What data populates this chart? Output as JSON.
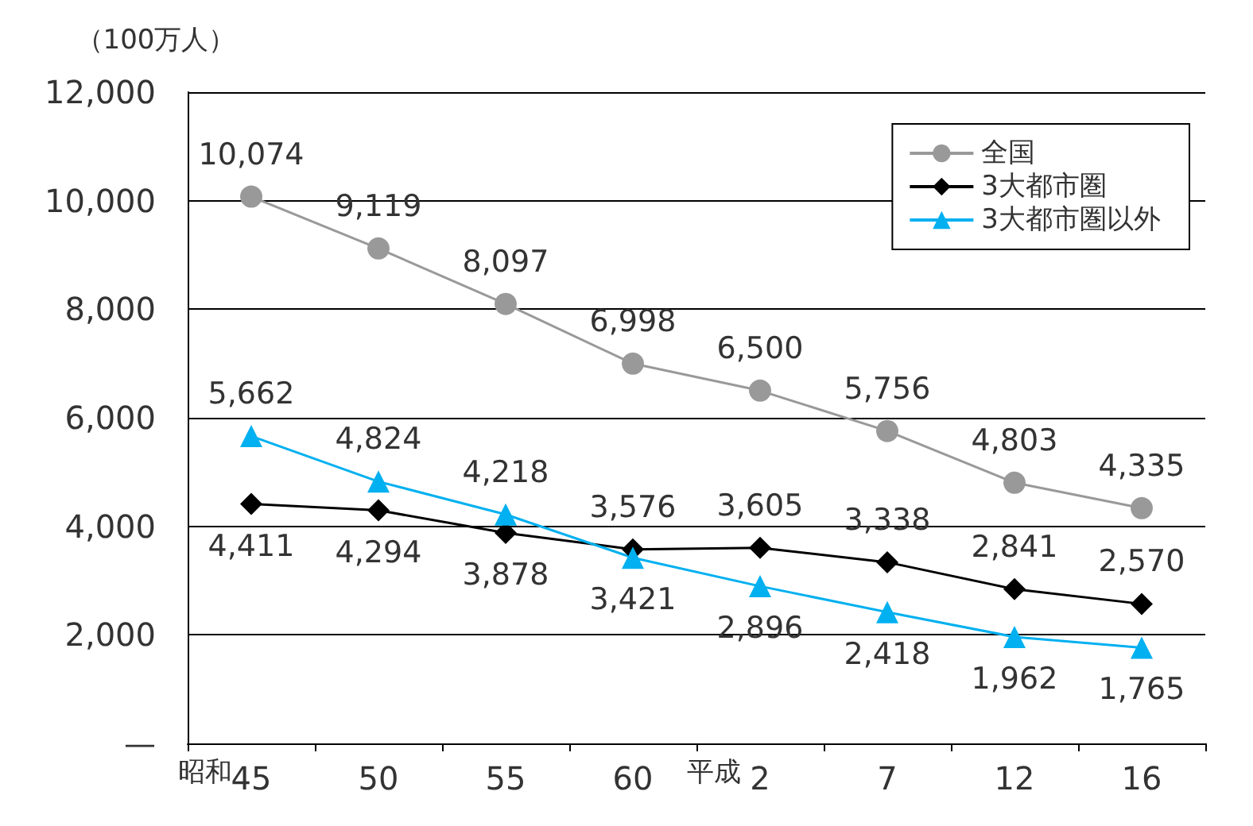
{
  "chart_data": {
    "type": "line",
    "ylabel": "（100万人）",
    "categories": [
      "45",
      "50",
      "55",
      "60",
      "2",
      "7",
      "12",
      "16"
    ],
    "series": [
      {
        "name": "全国",
        "color": "#999999",
        "marker": "circle",
        "values": [
          10074,
          9119,
          8097,
          6998,
          6500,
          5756,
          4803,
          4335
        ],
        "value_labels": [
          "10,074",
          "9,119",
          "8,097",
          "6,998",
          "6,500",
          "5,756",
          "4,803",
          "4,335"
        ]
      },
      {
        "name": "3大都市圏",
        "color": "#000000",
        "marker": "diamond",
        "values": [
          4411,
          4294,
          3878,
          3576,
          3605,
          3338,
          2841,
          2570
        ],
        "value_labels": [
          "4,411",
          "4,294",
          "3,878",
          "3,576",
          "3,605",
          "3,338",
          "2,841",
          "2,570"
        ]
      },
      {
        "name": "3大都市圏以外",
        "color": "#00b0f0",
        "marker": "triangle",
        "values": [
          5662,
          4824,
          4218,
          3421,
          2896,
          2418,
          1962,
          1765
        ],
        "value_labels": [
          "5,662",
          "4,824",
          "4,218",
          "3,421",
          "2,896",
          "2,418",
          "1,962",
          "1,765"
        ]
      }
    ],
    "ylim": [
      0,
      12000
    ],
    "yticks": [
      {
        "value": 0,
        "label": "—"
      },
      {
        "value": 2000,
        "label": "2,000"
      },
      {
        "value": 4000,
        "label": "4,000"
      },
      {
        "value": 6000,
        "label": "6,000"
      },
      {
        "value": 8000,
        "label": "8,000"
      },
      {
        "value": 10000,
        "label": "10,000"
      },
      {
        "value": 12000,
        "label": "12,000"
      }
    ],
    "annotations": [
      "昭和",
      "平成"
    ],
    "grid": "y",
    "legend": "top right"
  }
}
